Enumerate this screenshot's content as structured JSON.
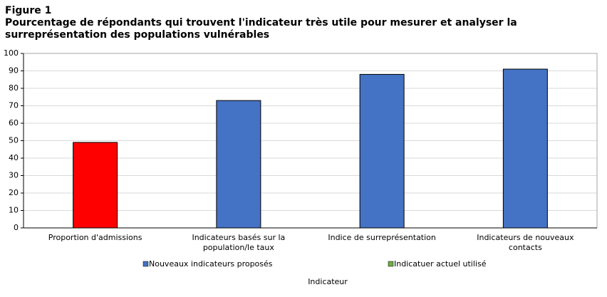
{
  "chart_data": {
    "type": "bar",
    "figure_label": "Figure 1",
    "title": "Pourcentage de répondants qui trouvent l'indicateur très utile pour mesurer et analyser la surreprésentation des populations vulnérables",
    "x_label": "Indicateur",
    "categories": [
      "Proportion d'admissions",
      "Indicateurs basés sur la population/le taux",
      "Indice de surreprésentation",
      "Indicateurs de nouveaux contacts"
    ],
    "values": [
      49,
      73,
      88,
      91
    ],
    "colors": [
      "#ff0000",
      "#4472c4",
      "#4472c4",
      "#4472c4"
    ],
    "legend": [
      {
        "name": "Nouveaux indicateurs proposés",
        "color": "#4472c4"
      },
      {
        "name": "Indicatuer actuel utilisé",
        "color": "#70ad47"
      }
    ],
    "ylim": [
      0,
      100
    ],
    "yticks": [
      0,
      10,
      20,
      30,
      40,
      50,
      60,
      70,
      80,
      90,
      100
    ],
    "grid": true
  }
}
